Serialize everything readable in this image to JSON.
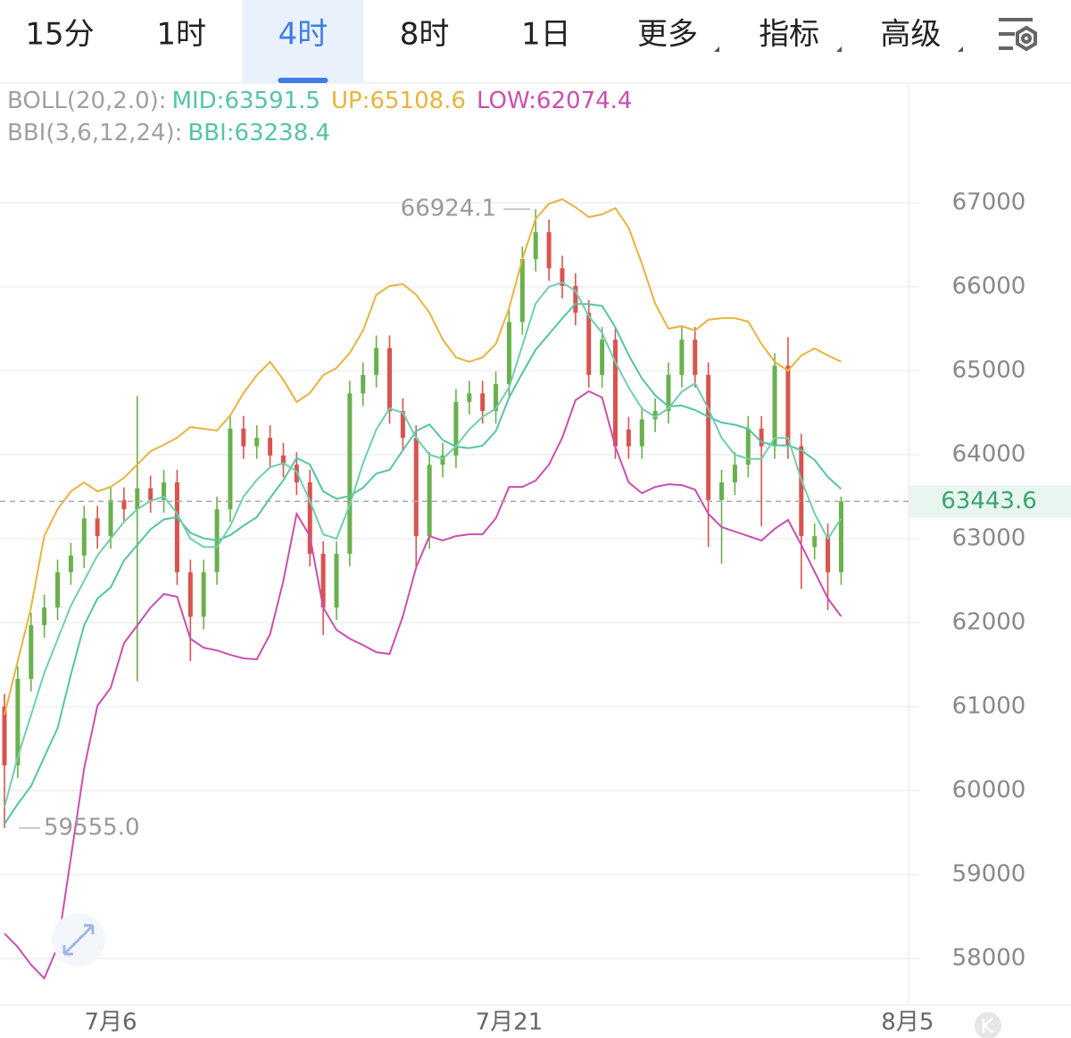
{
  "tabs": {
    "items": [
      "15分",
      "1时",
      "4时",
      "8时",
      "1日",
      "更多",
      "指标",
      "高级"
    ],
    "active": 2
  },
  "chart_data": {
    "type": "candlestick",
    "indicators": [
      {
        "label": "BOLL(20,2.0):",
        "items": [
          {
            "text": "MID:63591.5",
            "color": "#55c4a4"
          },
          {
            "text": "UP:65108.6",
            "color": "#e8b33f"
          },
          {
            "text": "LOW:62074.4",
            "color": "#c94fb0"
          }
        ]
      },
      {
        "label": "BBI(3,6,12,24):",
        "items": [
          {
            "text": "BBI:63238.4",
            "color": "#55c4a4"
          }
        ]
      }
    ],
    "categories": [
      null,
      null,
      null,
      null,
      null,
      null,
      null,
      null,
      "7月6",
      null,
      null,
      null,
      null,
      null,
      null,
      null,
      null,
      null,
      null,
      null,
      null,
      null,
      null,
      null,
      null,
      null,
      null,
      null,
      null,
      null,
      null,
      null,
      null,
      null,
      null,
      null,
      null,
      null,
      "7月21",
      null,
      null,
      null,
      null,
      null,
      null,
      null,
      null,
      null,
      null,
      null,
      null,
      null,
      null,
      null,
      null,
      null,
      null,
      null,
      null,
      null,
      null,
      null,
      null,
      null,
      null,
      null,
      null,
      null,
      "8月5"
    ],
    "open": [
      61000,
      60300,
      61330,
      61970,
      62180,
      62600,
      62800,
      63240,
      63030,
      63460,
      63350,
      63600,
      63460,
      63670,
      62600,
      62070,
      62600,
      63350,
      64310,
      64100,
      64200,
      63990,
      63880,
      63670,
      62820,
      62180,
      62820,
      64730,
      64950,
      65270,
      64520,
      64200,
      63030,
      63880,
      63990,
      64630,
      64730,
      64520,
      64840,
      65580,
      66330,
      66650,
      66220,
      66010,
      65690,
      64950,
      65370,
      64300,
      64100,
      64420,
      64520,
      64950,
      65370,
      64950,
      63460,
      63670,
      63880,
      64310,
      64100,
      65060,
      64100,
      62900,
      63030,
      62600,
      null,
      null,
      null,
      null,
      null
    ],
    "high": [
      61150,
      61480,
      62120,
      62330,
      62750,
      62950,
      63390,
      63390,
      63610,
      63610,
      64700,
      63750,
      63820,
      63820,
      62750,
      62750,
      63500,
      64460,
      64460,
      64350,
      64350,
      64140,
      64030,
      63820,
      62970,
      62970,
      64880,
      65100,
      65420,
      65420,
      64670,
      64350,
      64030,
      64140,
      64780,
      64880,
      64880,
      64990,
      65730,
      66480,
      66924.1,
      66800,
      66370,
      66160,
      65840,
      65520,
      65520,
      64450,
      64570,
      64670,
      65100,
      65520,
      65520,
      65100,
      63820,
      64030,
      64460,
      64460,
      65210,
      65400,
      64250,
      63180,
      63180,
      63500,
      null,
      null,
      null,
      null,
      null
    ],
    "low": [
      59555,
      60150,
      61180,
      61820,
      62030,
      62450,
      62650,
      62880,
      62880,
      63200,
      61300,
      63310,
      63310,
      62450,
      61540,
      61920,
      62450,
      63200,
      63950,
      63950,
      63840,
      63730,
      63520,
      62670,
      61850,
      62030,
      62670,
      64580,
      64800,
      64370,
      64050,
      62650,
      62880,
      63730,
      63840,
      64480,
      64370,
      64370,
      64690,
      65430,
      66180,
      66070,
      65860,
      65540,
      64800,
      64800,
      63950,
      63950,
      63950,
      64270,
      64370,
      64800,
      64800,
      62900,
      62700,
      63520,
      63730,
      63150,
      63950,
      63950,
      62400,
      62750,
      62150,
      62450,
      null,
      null,
      null,
      null,
      null
    ],
    "close": [
      60300,
      61330,
      61970,
      62180,
      62600,
      62800,
      63240,
      63030,
      63460,
      63350,
      63600,
      63460,
      63670,
      62600,
      62070,
      62600,
      63350,
      64310,
      64100,
      64200,
      63990,
      63880,
      63670,
      62820,
      62180,
      62820,
      64730,
      64950,
      65270,
      64520,
      64200,
      63030,
      63880,
      63990,
      64630,
      64730,
      64520,
      64840,
      65580,
      66330,
      66650,
      66220,
      66010,
      65690,
      64950,
      65370,
      64100,
      64100,
      64420,
      64520,
      64950,
      65370,
      64950,
      63460,
      63670,
      63880,
      64310,
      64100,
      65060,
      64100,
      63030,
      63030,
      62600,
      63443.6,
      null,
      null,
      null,
      null,
      null
    ],
    "up_color": "#6ab04c",
    "down_color": "#d9534f",
    "series": [
      {
        "color": "#55c4a4",
        "values": [
          59600,
          59840,
          60052,
          60398,
          60744,
          61382,
          61968,
          62287,
          62419,
          62739,
          62925,
          63111,
          63229,
          63255,
          63069,
          63005,
          62978,
          63042,
          63154,
          63255,
          63484,
          63696,
          63962,
          63883,
          63564,
          63473,
          63510,
          63606,
          63776,
          63819,
          64053,
          64282,
          64361,
          64175,
          64095,
          64079,
          64106,
          64282,
          64680,
          64973,
          65250,
          65436,
          65623,
          65798,
          65793,
          65772,
          65516,
          65186,
          64909,
          64707,
          64574,
          64585,
          64532,
          64452,
          64383,
          64356,
          64308,
          64149,
          64111,
          64112,
          64053,
          63936,
          63734,
          63591.5,
          null,
          null,
          null,
          null,
          null
        ]
      },
      {
        "color": "#e8b33f",
        "values": [
          60903,
          61542,
          62180,
          63031,
          63350,
          63563,
          63670,
          63563,
          63616,
          63723,
          63882,
          64042,
          64117,
          64202,
          64329,
          64308,
          64287,
          64468,
          64734,
          64947,
          65106,
          64893,
          64627,
          64734,
          64947,
          65032,
          65212,
          65479,
          65904,
          66010,
          66032,
          65904,
          65691,
          65372,
          65159,
          65106,
          65159,
          65319,
          65744,
          66330,
          66808,
          66989,
          67043,
          66947,
          66830,
          66862,
          66936,
          66702,
          66276,
          65798,
          65500,
          65532,
          65479,
          65606,
          65627,
          65627,
          65585,
          65319,
          65106,
          65000,
          65181,
          65266,
          65181,
          65108.6,
          null,
          null,
          null,
          null,
          null
        ]
      },
      {
        "color": "#c94fb0",
        "values": [
          58297,
          58137,
          57924,
          57764,
          58137,
          59201,
          60265,
          61010,
          61222,
          61754,
          61967,
          62180,
          62340,
          62308,
          61808,
          61701,
          61669,
          61616,
          61574,
          61563,
          61861,
          62499,
          63297,
          63031,
          62180,
          61914,
          61808,
          61733,
          61648,
          61627,
          62074,
          62659,
          63031,
          62978,
          63031,
          63052,
          63052,
          63244,
          63616,
          63616,
          63691,
          63882,
          64202,
          64649,
          64755,
          64681,
          64095,
          63670,
          63542,
          63616,
          63648,
          63638,
          63584,
          63297,
          63138,
          63084,
          63031,
          62978,
          63116,
          63223,
          62925,
          62606,
          62287,
          62074.4,
          null,
          null,
          null,
          null,
          null
        ]
      },
      {
        "color": "#6fcfae",
        "values": [
          59800,
          60400,
          60900,
          61400,
          61800,
          62200,
          62500,
          62800,
          63000,
          63200,
          63350,
          63450,
          63500,
          63300,
          63000,
          62900,
          62900,
          63150,
          63500,
          63700,
          63850,
          63900,
          63800,
          63450,
          63050,
          63000,
          63400,
          63900,
          64300,
          64550,
          64500,
          64200,
          64000,
          63950,
          64100,
          64300,
          64450,
          64550,
          64800,
          65300,
          65800,
          66000,
          66050,
          65950,
          65650,
          65450,
          65100,
          64800,
          64550,
          64450,
          64550,
          64750,
          64850,
          64550,
          64200,
          64000,
          63950,
          63950,
          64200,
          64200,
          63700,
          63300,
          63000,
          63238.4,
          null,
          null,
          null,
          null,
          null
        ]
      }
    ],
    "ylim": [
      57500,
      68400
    ],
    "yticks": [
      58000,
      59000,
      60000,
      61000,
      62000,
      63000,
      64000,
      65000,
      66000,
      67000
    ],
    "grid": true,
    "annotations": {
      "high": "66924.1",
      "low": "59555.0"
    }
  }
}
